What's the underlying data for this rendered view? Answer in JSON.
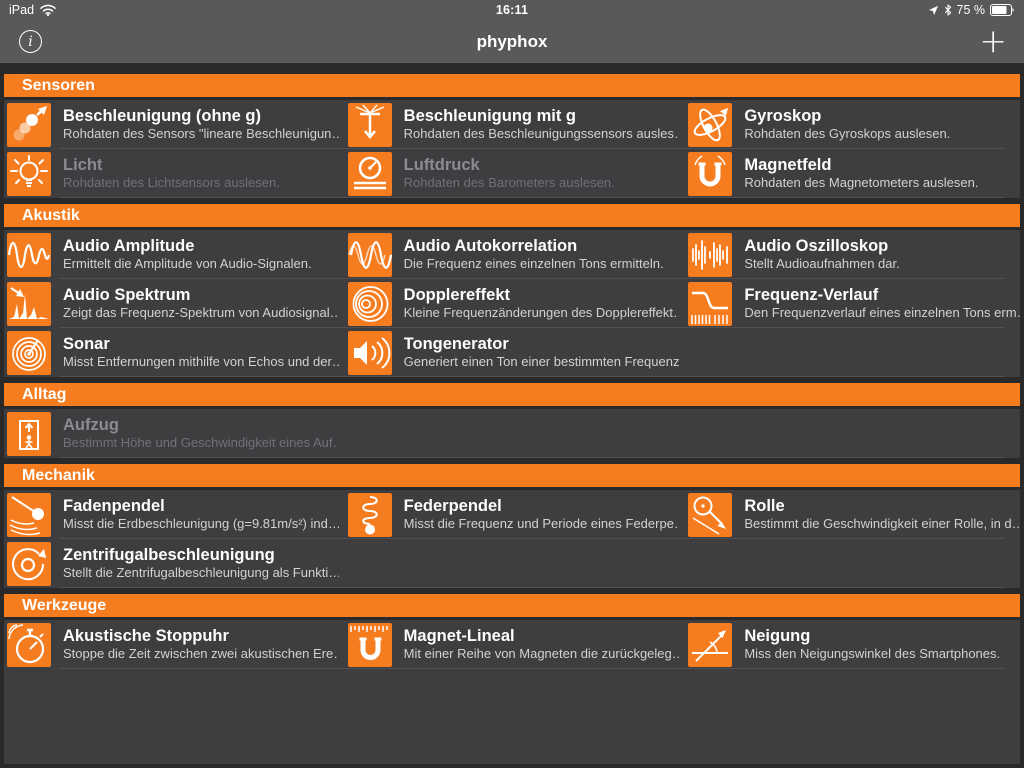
{
  "status_bar": {
    "device": "iPad",
    "time": "16:11",
    "battery_percent": "75 %",
    "icons": [
      "wifi-icon",
      "location-icon",
      "bluetooth-icon",
      "battery-icon"
    ]
  },
  "nav_bar": {
    "title": "phyphox",
    "info_label": "i",
    "add_label": "+"
  },
  "colors": {
    "accent_orange": "#f57d1f",
    "nav_gray": "#59595b",
    "page_background": "#2a2a2c",
    "panel_background": "#3e3e40"
  },
  "sections": [
    {
      "title": "Sensoren",
      "items": [
        {
          "title": "Beschleunigung (ohne g)",
          "desc": "Rohdaten des Sensors \"lineare Beschleunigun…",
          "icon": "acceleration-without-g",
          "disabled": false
        },
        {
          "title": "Beschleunigung mit g",
          "desc": "Rohdaten des Beschleunigungssensors ausles…",
          "icon": "acceleration-with-g",
          "disabled": false
        },
        {
          "title": "Gyroskop",
          "desc": "Rohdaten des Gyroskops auslesen.",
          "icon": "gyroscope",
          "disabled": false
        },
        {
          "title": "Licht",
          "desc": "Rohdaten des Lichtsensors auslesen.",
          "icon": "light",
          "disabled": true
        },
        {
          "title": "Luftdruck",
          "desc": "Rohdaten des Barometers auslesen.",
          "icon": "pressure",
          "disabled": true
        },
        {
          "title": "Magnetfeld",
          "desc": "Rohdaten des Magnetometers auslesen.",
          "icon": "magnetic-field",
          "disabled": false
        }
      ]
    },
    {
      "title": "Akustik",
      "items": [
        {
          "title": "Audio Amplitude",
          "desc": "Ermittelt die Amplitude von Audio-Signalen.",
          "icon": "audio-amplitude",
          "disabled": false
        },
        {
          "title": "Audio Autokorrelation",
          "desc": "Die Frequenz eines einzelnen Tons ermitteln.",
          "icon": "audio-autocorrelation",
          "disabled": false
        },
        {
          "title": "Audio Oszilloskop",
          "desc": "Stellt Audioaufnahmen dar.",
          "icon": "audio-oscilloscope",
          "disabled": false
        },
        {
          "title": "Audio Spektrum",
          "desc": "Zeigt das Frequenz-Spektrum von Audiosignal…",
          "icon": "audio-spectrum",
          "disabled": false
        },
        {
          "title": "Dopplereffekt",
          "desc": "Kleine Frequenzänderungen des Dopplereffekt…",
          "icon": "doppler-effect",
          "disabled": false
        },
        {
          "title": "Frequenz-Verlauf",
          "desc": "Den Frequenzverlauf eines einzelnen Tons erm…",
          "icon": "frequency-history",
          "disabled": false
        },
        {
          "title": "Sonar",
          "desc": "Misst Entfernungen mithilfe von Echos und der…",
          "icon": "sonar",
          "disabled": false
        },
        {
          "title": "Tongenerator",
          "desc": "Generiert einen Ton einer bestimmten Frequenz.",
          "icon": "tone-generator",
          "disabled": false
        }
      ]
    },
    {
      "title": "Alltag",
      "items": [
        {
          "title": "Aufzug",
          "desc": "Bestimmt Höhe und Geschwindigkeit eines Auf…",
          "icon": "elevator",
          "disabled": true
        }
      ]
    },
    {
      "title": "Mechanik",
      "items": [
        {
          "title": "Fadenpendel",
          "desc": "Misst die Erdbeschleunigung (g=9.81m/s²) ind…",
          "icon": "pendulum",
          "disabled": false
        },
        {
          "title": "Federpendel",
          "desc": "Misst die Frequenz und Periode eines Federpe…",
          "icon": "spring-pendulum",
          "disabled": false
        },
        {
          "title": "Rolle",
          "desc": "Bestimmt die Geschwindigkeit einer Rolle, in d…",
          "icon": "roll",
          "disabled": false
        },
        {
          "title": "Zentrifugalbeschleunigung",
          "desc": "Stellt die Zentrifugalbeschleunigung als Funkti…",
          "icon": "centrifugal-acceleration",
          "disabled": false
        }
      ]
    },
    {
      "title": "Werkzeuge",
      "items": [
        {
          "title": "Akustische Stoppuhr",
          "desc": "Stoppe die Zeit zwischen zwei akustischen Ere…",
          "icon": "acoustic-stopwatch",
          "disabled": false
        },
        {
          "title": "Magnet-Lineal",
          "desc": "Mit einer Reihe von Magneten die zurückgeleg…",
          "icon": "magnet-ruler",
          "disabled": false
        },
        {
          "title": "Neigung",
          "desc": "Miss den Neigungswinkel des Smartphones.",
          "icon": "inclination",
          "disabled": false
        }
      ]
    }
  ]
}
